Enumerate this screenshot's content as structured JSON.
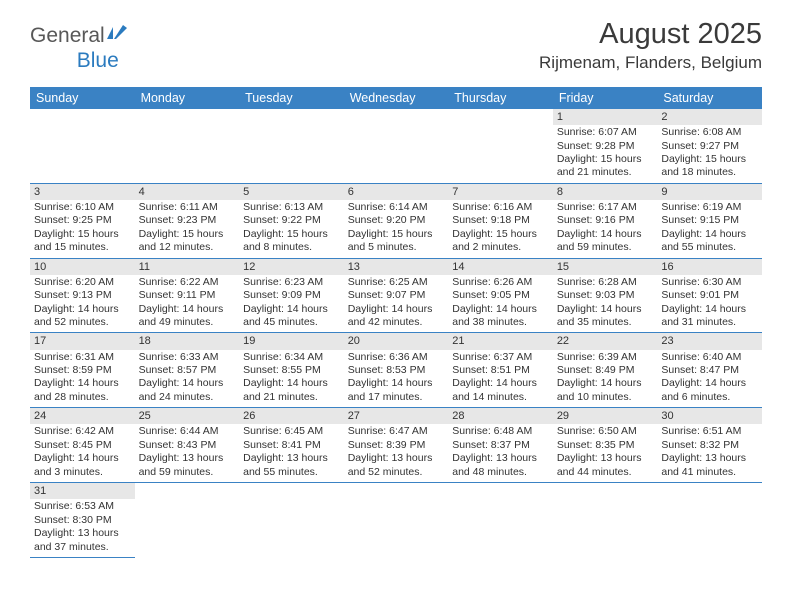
{
  "logo": {
    "text1": "General",
    "text2": "Blue"
  },
  "title": "August 2025",
  "location": "Rijmenam, Flanders, Belgium",
  "colors": {
    "header_bg": "#3a82c4",
    "header_text": "#ffffff",
    "daynum_bg": "#e7e7e7",
    "cell_border": "#3a82c4",
    "logo_gray": "#585858",
    "logo_blue": "#2b7bbf"
  },
  "dayNames": [
    "Sunday",
    "Monday",
    "Tuesday",
    "Wednesday",
    "Thursday",
    "Friday",
    "Saturday"
  ],
  "weeks": [
    [
      null,
      null,
      null,
      null,
      null,
      {
        "n": "1",
        "sr": "6:07 AM",
        "ss": "9:28 PM",
        "dl": "15 hours and 21 minutes."
      },
      {
        "n": "2",
        "sr": "6:08 AM",
        "ss": "9:27 PM",
        "dl": "15 hours and 18 minutes."
      }
    ],
    [
      {
        "n": "3",
        "sr": "6:10 AM",
        "ss": "9:25 PM",
        "dl": "15 hours and 15 minutes."
      },
      {
        "n": "4",
        "sr": "6:11 AM",
        "ss": "9:23 PM",
        "dl": "15 hours and 12 minutes."
      },
      {
        "n": "5",
        "sr": "6:13 AM",
        "ss": "9:22 PM",
        "dl": "15 hours and 8 minutes."
      },
      {
        "n": "6",
        "sr": "6:14 AM",
        "ss": "9:20 PM",
        "dl": "15 hours and 5 minutes."
      },
      {
        "n": "7",
        "sr": "6:16 AM",
        "ss": "9:18 PM",
        "dl": "15 hours and 2 minutes."
      },
      {
        "n": "8",
        "sr": "6:17 AM",
        "ss": "9:16 PM",
        "dl": "14 hours and 59 minutes."
      },
      {
        "n": "9",
        "sr": "6:19 AM",
        "ss": "9:15 PM",
        "dl": "14 hours and 55 minutes."
      }
    ],
    [
      {
        "n": "10",
        "sr": "6:20 AM",
        "ss": "9:13 PM",
        "dl": "14 hours and 52 minutes."
      },
      {
        "n": "11",
        "sr": "6:22 AM",
        "ss": "9:11 PM",
        "dl": "14 hours and 49 minutes."
      },
      {
        "n": "12",
        "sr": "6:23 AM",
        "ss": "9:09 PM",
        "dl": "14 hours and 45 minutes."
      },
      {
        "n": "13",
        "sr": "6:25 AM",
        "ss": "9:07 PM",
        "dl": "14 hours and 42 minutes."
      },
      {
        "n": "14",
        "sr": "6:26 AM",
        "ss": "9:05 PM",
        "dl": "14 hours and 38 minutes."
      },
      {
        "n": "15",
        "sr": "6:28 AM",
        "ss": "9:03 PM",
        "dl": "14 hours and 35 minutes."
      },
      {
        "n": "16",
        "sr": "6:30 AM",
        "ss": "9:01 PM",
        "dl": "14 hours and 31 minutes."
      }
    ],
    [
      {
        "n": "17",
        "sr": "6:31 AM",
        "ss": "8:59 PM",
        "dl": "14 hours and 28 minutes."
      },
      {
        "n": "18",
        "sr": "6:33 AM",
        "ss": "8:57 PM",
        "dl": "14 hours and 24 minutes."
      },
      {
        "n": "19",
        "sr": "6:34 AM",
        "ss": "8:55 PM",
        "dl": "14 hours and 21 minutes."
      },
      {
        "n": "20",
        "sr": "6:36 AM",
        "ss": "8:53 PM",
        "dl": "14 hours and 17 minutes."
      },
      {
        "n": "21",
        "sr": "6:37 AM",
        "ss": "8:51 PM",
        "dl": "14 hours and 14 minutes."
      },
      {
        "n": "22",
        "sr": "6:39 AM",
        "ss": "8:49 PM",
        "dl": "14 hours and 10 minutes."
      },
      {
        "n": "23",
        "sr": "6:40 AM",
        "ss": "8:47 PM",
        "dl": "14 hours and 6 minutes."
      }
    ],
    [
      {
        "n": "24",
        "sr": "6:42 AM",
        "ss": "8:45 PM",
        "dl": "14 hours and 3 minutes."
      },
      {
        "n": "25",
        "sr": "6:44 AM",
        "ss": "8:43 PM",
        "dl": "13 hours and 59 minutes."
      },
      {
        "n": "26",
        "sr": "6:45 AM",
        "ss": "8:41 PM",
        "dl": "13 hours and 55 minutes."
      },
      {
        "n": "27",
        "sr": "6:47 AM",
        "ss": "8:39 PM",
        "dl": "13 hours and 52 minutes."
      },
      {
        "n": "28",
        "sr": "6:48 AM",
        "ss": "8:37 PM",
        "dl": "13 hours and 48 minutes."
      },
      {
        "n": "29",
        "sr": "6:50 AM",
        "ss": "8:35 PM",
        "dl": "13 hours and 44 minutes."
      },
      {
        "n": "30",
        "sr": "6:51 AM",
        "ss": "8:32 PM",
        "dl": "13 hours and 41 minutes."
      }
    ],
    [
      {
        "n": "31",
        "sr": "6:53 AM",
        "ss": "8:30 PM",
        "dl": "13 hours and 37 minutes."
      },
      null,
      null,
      null,
      null,
      null,
      null
    ]
  ],
  "labels": {
    "sunrise": "Sunrise: ",
    "sunset": "Sunset: ",
    "daylight": "Daylight: "
  }
}
